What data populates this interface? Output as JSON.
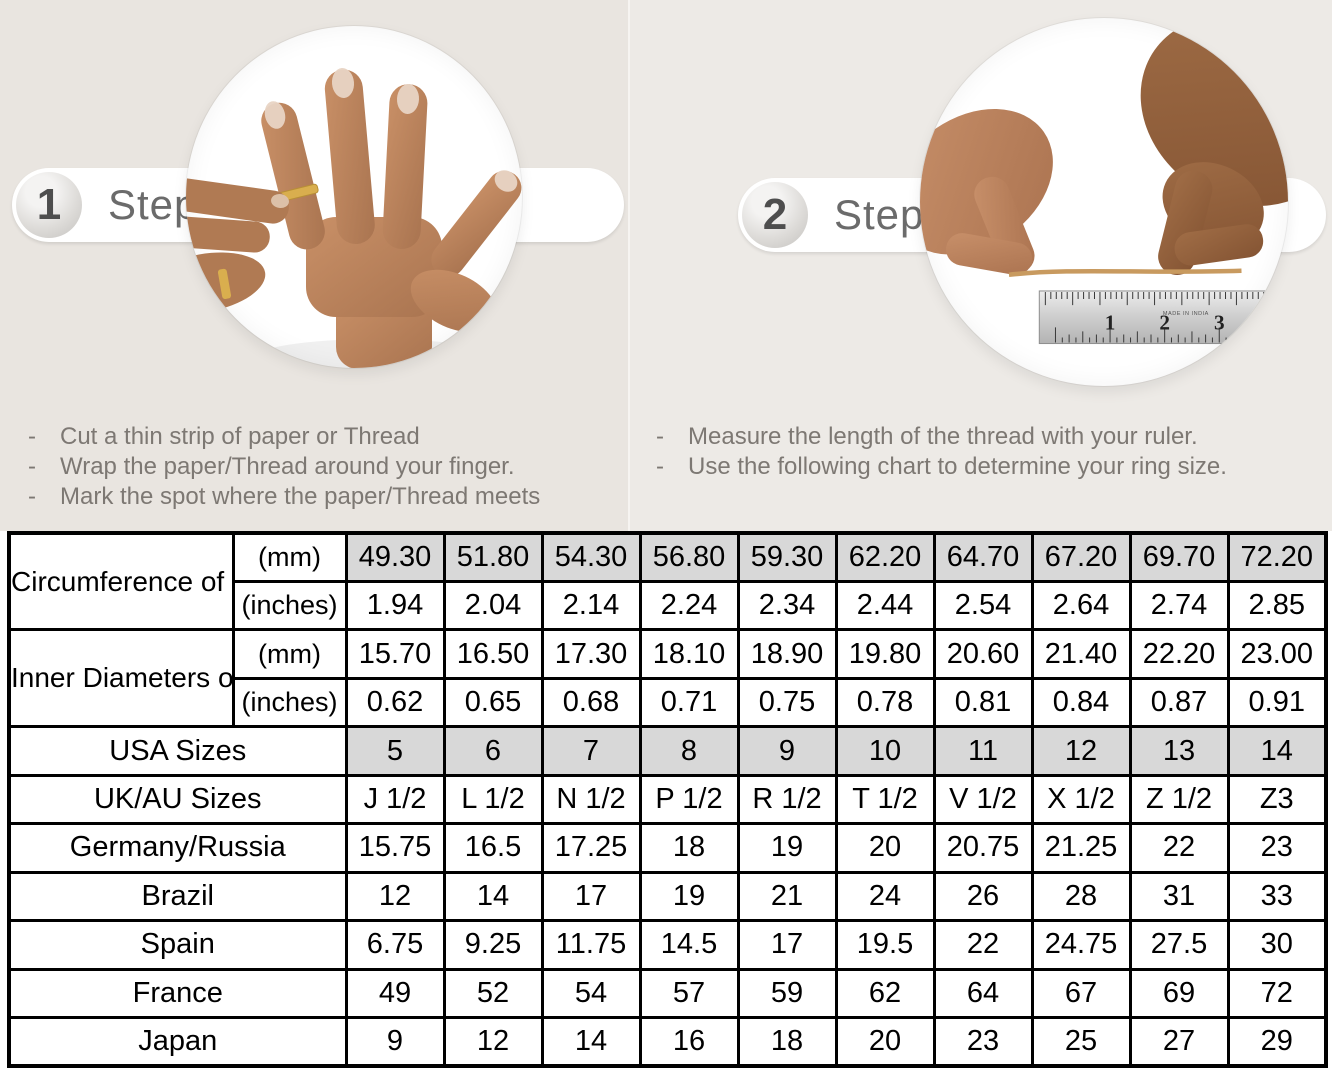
{
  "steps": [
    {
      "number": "1",
      "label": "Step",
      "bullets": [
        "Cut a thin strip of paper or Thread",
        "Wrap the paper/Thread around your finger.",
        "Mark the spot where the paper/Thread meets"
      ]
    },
    {
      "number": "2",
      "label": "Step",
      "bullets": [
        "Measure the length of the thread with your ruler.",
        "Use the following chart to determine your ring size."
      ]
    }
  ],
  "illustrations": {
    "left": "hand-wearing-thin-gold-ring-photo",
    "right": "hands-measuring-thread-over-ruler-photo",
    "ruler_numbers": [
      "1",
      "2",
      "3"
    ],
    "ruler_caption": "MADE IN INDIA"
  },
  "colors": {
    "panel_left_bg": "#e9e5e0",
    "panel_right_bg": "#edeae6",
    "shaded_cell": "#d8d8d8",
    "table_border": "#000000",
    "step_text": "#6b6b6b",
    "bullet_text": "#7d7873",
    "ring_gold": "#d9ae4e"
  },
  "chart_data": {
    "type": "table",
    "columns": 10,
    "rows": [
      {
        "label": "Circumference of Your Finger",
        "label_rowspan": 2,
        "unit": "(mm)",
        "shaded": true,
        "values": [
          "49.30",
          "51.80",
          "54.30",
          "56.80",
          "59.30",
          "62.20",
          "64.70",
          "67.20",
          "69.70",
          "72.20"
        ]
      },
      {
        "unit": "(inches)",
        "values": [
          "1.94",
          "2.04",
          "2.14",
          "2.24",
          "2.34",
          "2.44",
          "2.54",
          "2.64",
          "2.74",
          "2.85"
        ]
      },
      {
        "label": "Inner Diameters of Rings",
        "label_rowspan": 2,
        "unit": "(mm)",
        "values": [
          "15.70",
          "16.50",
          "17.30",
          "18.10",
          "18.90",
          "19.80",
          "20.60",
          "21.40",
          "22.20",
          "23.00"
        ]
      },
      {
        "unit": "(inches)",
        "values": [
          "0.62",
          "0.65",
          "0.68",
          "0.71",
          "0.75",
          "0.78",
          "0.81",
          "0.84",
          "0.87",
          "0.91"
        ]
      },
      {
        "label": "USA Sizes",
        "merged": true,
        "shaded": true,
        "values": [
          "5",
          "6",
          "7",
          "8",
          "9",
          "10",
          "11",
          "12",
          "13",
          "14"
        ]
      },
      {
        "label": "UK/AU Sizes",
        "merged": true,
        "values": [
          "J 1/2",
          "L 1/2",
          "N 1/2",
          "P 1/2",
          "R 1/2",
          "T 1/2",
          "V 1/2",
          "X 1/2",
          "Z 1/2",
          "Z3"
        ]
      },
      {
        "label": "Germany/Russia",
        "merged": true,
        "values": [
          "15.75",
          "16.5",
          "17.25",
          "18",
          "19",
          "20",
          "20.75",
          "21.25",
          "22",
          "23"
        ]
      },
      {
        "label": "Brazil",
        "merged": true,
        "values": [
          "12",
          "14",
          "17",
          "19",
          "21",
          "24",
          "26",
          "28",
          "31",
          "33"
        ]
      },
      {
        "label": "Spain",
        "merged": true,
        "values": [
          "6.75",
          "9.25",
          "11.75",
          "14.5",
          "17",
          "19.5",
          "22",
          "24.75",
          "27.5",
          "30"
        ]
      },
      {
        "label": "France",
        "merged": true,
        "values": [
          "49",
          "52",
          "54",
          "57",
          "59",
          "62",
          "64",
          "67",
          "69",
          "72"
        ]
      },
      {
        "label": "Japan",
        "merged": true,
        "values": [
          "9",
          "12",
          "14",
          "16",
          "18",
          "20",
          "23",
          "25",
          "27",
          "29"
        ]
      }
    ]
  }
}
